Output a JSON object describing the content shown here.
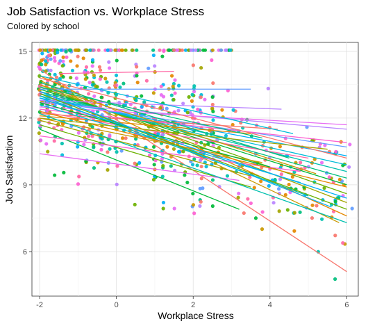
{
  "chart_data": {
    "type": "scatter",
    "title": "Job Satisfaction vs. Workplace Stress",
    "subtitle": "Colored by school",
    "xlabel": "Workplace Stress",
    "ylabel": "Job Satisfaction",
    "xlim": [
      -2.2,
      6.3
    ],
    "ylim": [
      4.0,
      15.4
    ],
    "x_ticks": [
      -2,
      0,
      2,
      4,
      6
    ],
    "y_ticks": [
      6,
      9,
      12,
      15
    ],
    "grid": true,
    "legend": "none",
    "colors": [
      "#F8766D",
      "#E58700",
      "#C99800",
      "#A3A500",
      "#6BB100",
      "#00BA38",
      "#00BF7D",
      "#00C0AF",
      "#00BCD8",
      "#00B0F6",
      "#619CFF",
      "#B983FF",
      "#E76BF3",
      "#FD61D1",
      "#FF67A4"
    ],
    "regression_lines": [
      {
        "x1": -2,
        "y1": 14.2,
        "x2": 6.0,
        "y2": 5.1
      },
      {
        "x1": -2,
        "y1": 13.9,
        "x2": 6.0,
        "y2": 7.6
      },
      {
        "x1": -2,
        "y1": 13.7,
        "x2": 5.8,
        "y2": 7.3
      },
      {
        "x1": -2,
        "y1": 13.5,
        "x2": 6.0,
        "y2": 8.2
      },
      {
        "x1": -2,
        "y1": 13.4,
        "x2": 6.0,
        "y2": 8.6
      },
      {
        "x1": -2,
        "y1": 13.3,
        "x2": 6.0,
        "y2": 9.0
      },
      {
        "x1": -2,
        "y1": 13.2,
        "x2": 6.0,
        "y2": 9.3
      },
      {
        "x1": -2,
        "y1": 13.1,
        "x2": 6.0,
        "y2": 9.6
      },
      {
        "x1": -2,
        "y1": 13.0,
        "x2": 6.0,
        "y2": 9.9
      },
      {
        "x1": -2,
        "y1": 12.9,
        "x2": 6.0,
        "y2": 10.3
      },
      {
        "x1": -2,
        "y1": 12.8,
        "x2": 6.0,
        "y2": 10.7
      },
      {
        "x1": -2,
        "y1": 12.7,
        "x2": 6.0,
        "y2": 11.5
      },
      {
        "x1": -2,
        "y1": 12.5,
        "x2": 6.0,
        "y2": 11.7
      },
      {
        "x1": -2,
        "y1": 12.4,
        "x2": 6.0,
        "y2": 10.9
      },
      {
        "x1": -2,
        "y1": 12.3,
        "x2": 5.0,
        "y2": 10.2
      },
      {
        "x1": -2,
        "y1": 12.2,
        "x2": 4.2,
        "y2": 11.5
      },
      {
        "x1": -2,
        "y1": 12.1,
        "x2": 3.5,
        "y2": 11.3
      },
      {
        "x1": -2,
        "y1": 12.0,
        "x2": 3.8,
        "y2": 10.0
      },
      {
        "x1": -2,
        "y1": 11.9,
        "x2": 3.5,
        "y2": 9.4
      },
      {
        "x1": -2,
        "y1": 11.7,
        "x2": 3.5,
        "y2": 8.9
      },
      {
        "x1": -2,
        "y1": 11.5,
        "x2": 3.2,
        "y2": 7.9
      },
      {
        "x1": -2,
        "y1": 13.6,
        "x2": 4.5,
        "y2": 10.2
      },
      {
        "x1": -2,
        "y1": 13.0,
        "x2": 5.0,
        "y2": 8.5
      },
      {
        "x1": -2,
        "y1": 12.6,
        "x2": 4.8,
        "y2": 9.1
      },
      {
        "x1": -2,
        "y1": 13.2,
        "x2": 5.6,
        "y2": 8.0
      },
      {
        "x1": -2,
        "y1": 13.3,
        "x2": 3.5,
        "y2": 13.3
      },
      {
        "x1": -2,
        "y1": 12.8,
        "x2": 4.3,
        "y2": 12.4
      },
      {
        "x1": -2,
        "y1": 10.4,
        "x2": 3.2,
        "y2": 9.2
      },
      {
        "x1": -2,
        "y1": 11.2,
        "x2": 4.8,
        "y2": 9.6
      },
      {
        "x1": -1.5,
        "y1": 14.0,
        "x2": 1.5,
        "y2": 14.1
      },
      {
        "x1": -2,
        "y1": 13.8,
        "x2": 6.0,
        "y2": 10.2
      },
      {
        "x1": -2,
        "y1": 12.3,
        "x2": 6.0,
        "y2": 8.9
      },
      {
        "x1": -2,
        "y1": 13.5,
        "x2": 5.2,
        "y2": 9.5
      },
      {
        "x1": -2,
        "y1": 12.0,
        "x2": 5.5,
        "y2": 10.6
      },
      {
        "x1": -2,
        "y1": 13.1,
        "x2": 6.0,
        "y2": 7.9
      },
      {
        "x1": -2,
        "y1": 12.7,
        "x2": 4.0,
        "y2": 9.8
      },
      {
        "x1": -2,
        "y1": 13.4,
        "x2": 3.8,
        "y2": 11.1
      },
      {
        "x1": -2,
        "y1": 12.2,
        "x2": 6.0,
        "y2": 7.3
      },
      {
        "x1": -2,
        "y1": 13.9,
        "x2": 4.6,
        "y2": 11.3
      },
      {
        "x1": -2,
        "y1": 12.9,
        "x2": 6.0,
        "y2": 8.4
      }
    ]
  }
}
